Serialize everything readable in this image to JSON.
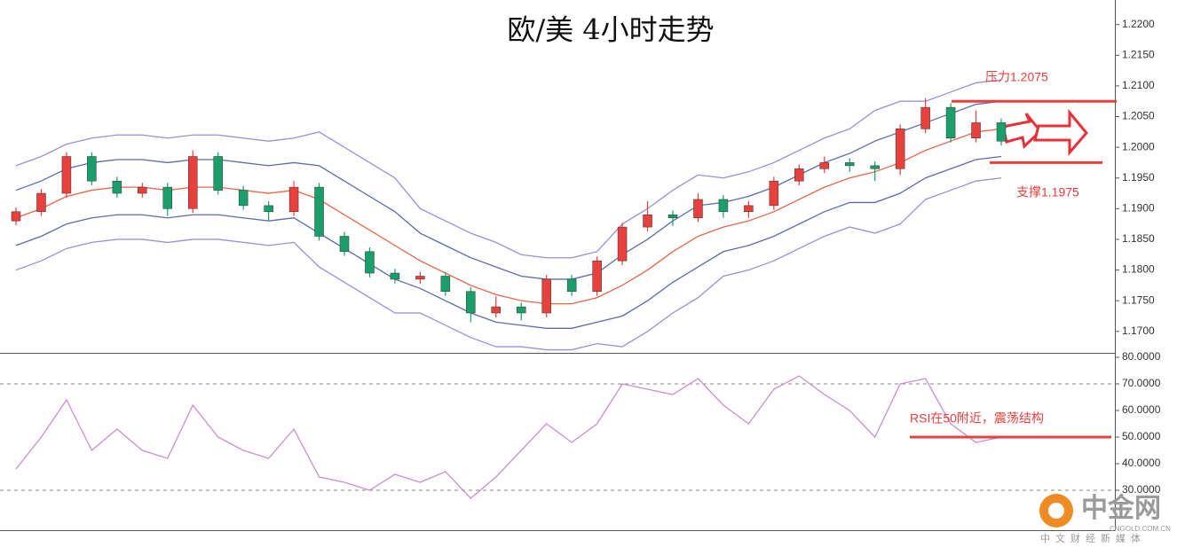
{
  "title": "欧/美 4小时走势",
  "watermark": {
    "name": "中金网",
    "url": "CNGOLD.COM.CN",
    "tagline": "中文财经新媒体"
  },
  "chart_data": [
    {
      "type": "candlestick",
      "up_color": "#e8403c",
      "down_color": "#1a9e6a",
      "open": [
        1.188,
        1.1895,
        1.1925,
        1.1985,
        1.1945,
        1.1925,
        1.1935,
        1.19,
        1.1985,
        1.193,
        1.1905,
        1.1895,
        1.1935,
        1.1855,
        1.183,
        1.1795,
        1.1785,
        1.179,
        1.1765,
        1.173,
        1.174,
        1.173,
        1.1785,
        1.1765,
        1.1815,
        1.187,
        1.189,
        1.1885,
        1.1915,
        1.1895,
        1.1905,
        1.1945,
        1.1965,
        1.1975,
        1.197,
        1.1965,
        1.203,
        1.2065,
        1.2015,
        1.204
      ],
      "high": [
        1.1902,
        1.1932,
        1.1992,
        1.1992,
        1.1952,
        1.1942,
        1.1942,
        1.1995,
        1.1992,
        1.1937,
        1.1912,
        1.1945,
        1.1942,
        1.1862,
        1.1837,
        1.1802,
        1.1797,
        1.1797,
        1.1772,
        1.1757,
        1.1747,
        1.1792,
        1.1792,
        1.1822,
        1.1877,
        1.1912,
        1.1897,
        1.1925,
        1.1922,
        1.1912,
        1.1952,
        1.1972,
        1.1985,
        1.1982,
        1.1977,
        1.2037,
        1.208,
        1.2072,
        1.206,
        1.2047
      ],
      "low": [
        1.1873,
        1.1888,
        1.1918,
        1.1938,
        1.1918,
        1.1918,
        1.1888,
        1.1893,
        1.1923,
        1.1898,
        1.188,
        1.1888,
        1.1848,
        1.1823,
        1.1788,
        1.1778,
        1.1778,
        1.1758,
        1.1715,
        1.1723,
        1.1718,
        1.1723,
        1.1758,
        1.1758,
        1.1808,
        1.1863,
        1.1872,
        1.1878,
        1.1885,
        1.1885,
        1.1898,
        1.1938,
        1.1958,
        1.196,
        1.1945,
        1.1955,
        1.2023,
        1.2008,
        1.2008,
        1.2003
      ],
      "close": [
        1.1895,
        1.1925,
        1.1985,
        1.1945,
        1.1925,
        1.1935,
        1.19,
        1.1985,
        1.193,
        1.1905,
        1.1895,
        1.1935,
        1.1855,
        1.183,
        1.1795,
        1.1785,
        1.179,
        1.1765,
        1.173,
        1.174,
        1.173,
        1.1785,
        1.1765,
        1.1815,
        1.187,
        1.189,
        1.1885,
        1.1915,
        1.1895,
        1.1905,
        1.1945,
        1.1965,
        1.1975,
        1.197,
        1.1965,
        1.203,
        1.2065,
        1.2015,
        1.204,
        1.201
      ],
      "series": [
        {
          "color": "#9b8fdb",
          "values": [
            1.197,
            1.1985,
            1.2005,
            1.2015,
            1.202,
            1.202,
            1.2015,
            1.202,
            1.202,
            1.2015,
            1.201,
            1.2015,
            1.2025,
            1.2,
            1.1975,
            1.195,
            1.19,
            1.188,
            1.186,
            1.1845,
            1.1825,
            1.182,
            1.182,
            1.183,
            1.1875,
            1.19,
            1.193,
            1.1955,
            1.195,
            1.196,
            1.1975,
            1.1995,
            1.2015,
            1.203,
            1.206,
            1.2075,
            1.2075,
            1.209,
            1.2105,
            1.211
          ]
        },
        {
          "color": "#5b6cae",
          "values": [
            1.193,
            1.1945,
            1.1965,
            1.1975,
            1.198,
            1.198,
            1.1975,
            1.198,
            1.198,
            1.1975,
            1.197,
            1.1975,
            1.197,
            1.1945,
            1.192,
            1.1895,
            1.186,
            1.184,
            1.182,
            1.1805,
            1.179,
            1.1785,
            1.1785,
            1.1795,
            1.1825,
            1.185,
            1.188,
            1.1905,
            1.191,
            1.192,
            1.1935,
            1.1955,
            1.1975,
            1.199,
            1.201,
            1.2025,
            1.204,
            1.2055,
            1.207,
            1.2075
          ]
        },
        {
          "color": "#e8674a",
          "values": [
            1.1885,
            1.19,
            1.192,
            1.193,
            1.1935,
            1.1935,
            1.193,
            1.1935,
            1.1935,
            1.193,
            1.1925,
            1.193,
            1.1915,
            1.189,
            1.1865,
            1.184,
            1.1815,
            1.1795,
            1.1775,
            1.176,
            1.175,
            1.1745,
            1.1745,
            1.1755,
            1.1775,
            1.18,
            1.183,
            1.1855,
            1.187,
            1.188,
            1.1895,
            1.1915,
            1.1935,
            1.195,
            1.196,
            1.1975,
            1.1995,
            1.201,
            1.2025,
            1.203
          ]
        },
        {
          "color": "#5b6cae",
          "values": [
            1.184,
            1.1855,
            1.1875,
            1.1885,
            1.189,
            1.189,
            1.1885,
            1.189,
            1.189,
            1.1885,
            1.188,
            1.1885,
            1.186,
            1.1835,
            1.181,
            1.1785,
            1.177,
            1.175,
            1.173,
            1.1715,
            1.171,
            1.1705,
            1.1705,
            1.1715,
            1.1725,
            1.175,
            1.178,
            1.1805,
            1.183,
            1.184,
            1.1855,
            1.1875,
            1.1895,
            1.191,
            1.191,
            1.1925,
            1.195,
            1.1965,
            1.198,
            1.1985
          ]
        },
        {
          "color": "#9b8fdb",
          "values": [
            1.18,
            1.1815,
            1.1835,
            1.1845,
            1.185,
            1.185,
            1.1845,
            1.185,
            1.185,
            1.1845,
            1.184,
            1.1845,
            1.1805,
            1.178,
            1.1755,
            1.173,
            1.173,
            1.171,
            1.169,
            1.1675,
            1.1675,
            1.167,
            1.167,
            1.168,
            1.1675,
            1.17,
            1.173,
            1.1755,
            1.179,
            1.18,
            1.1815,
            1.1835,
            1.1855,
            1.187,
            1.186,
            1.1875,
            1.1915,
            1.193,
            1.1945,
            1.195
          ]
        }
      ],
      "ylim": [
        1.1665,
        1.224
      ],
      "yticks": [
        {
          "value": 1.22,
          "label": "1.2200"
        },
        {
          "value": 1.215,
          "label": "1.2150"
        },
        {
          "value": 1.21,
          "label": "1.2100"
        },
        {
          "value": 1.205,
          "label": "1.2050"
        },
        {
          "value": 1.2,
          "label": "1.2000"
        },
        {
          "value": 1.195,
          "label": "1.1950"
        },
        {
          "value": 1.19,
          "label": "1.1900"
        },
        {
          "value": 1.185,
          "label": "1.1850"
        },
        {
          "value": 1.18,
          "label": "1.1800"
        },
        {
          "value": 1.175,
          "label": "1.1750"
        },
        {
          "value": 1.17,
          "label": "1.1700"
        }
      ],
      "annotations": [
        {
          "text": "压力1.2075",
          "value": 1.2075,
          "color": "#e8403c"
        },
        {
          "text": "支撑1.1975",
          "value": 1.1975,
          "color": "#e8403c"
        }
      ]
    },
    {
      "type": "line",
      "color": "#c98fd0",
      "values": [
        38,
        50,
        64,
        45,
        53,
        45,
        42,
        62,
        50,
        45,
        42,
        53,
        35,
        33,
        30,
        36,
        33,
        37,
        27,
        35,
        45,
        55,
        48,
        55,
        70,
        68,
        66,
        72,
        62,
        55,
        68,
        73,
        66,
        60,
        50,
        70,
        72,
        55,
        48,
        50
      ],
      "ylim": [
        15,
        80
      ],
      "yticks": [
        {
          "value": 80,
          "label": "80.0000"
        },
        {
          "value": 70,
          "label": "70.0000"
        },
        {
          "value": 60,
          "label": "60.0000"
        },
        {
          "value": 50,
          "label": "50.0000"
        },
        {
          "value": 40,
          "label": "40.0000"
        },
        {
          "value": 30,
          "label": "30.0000"
        }
      ],
      "reference_lines": [
        70,
        30
      ],
      "annotations": [
        {
          "text": "RSI在50附近，震荡结构",
          "value": 50,
          "color": "#e8403c"
        }
      ]
    }
  ]
}
